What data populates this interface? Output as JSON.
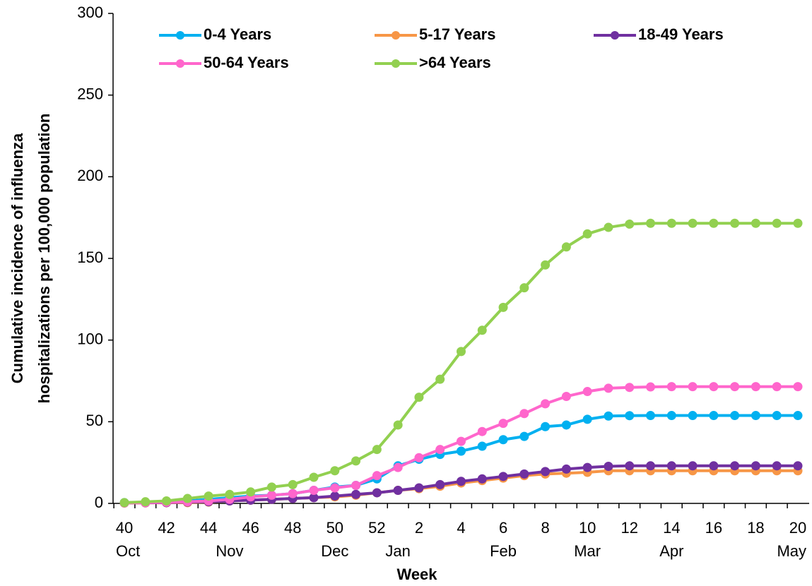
{
  "chart_data": {
    "type": "line",
    "xlabel": "Week",
    "ylabel": [
      "Cumulative incidence of influenza",
      "hospitalizations per 100,000 population"
    ],
    "categories": [
      "40",
      null,
      "42",
      null,
      "44",
      null,
      "46",
      null,
      "48",
      null,
      "50",
      null,
      "52",
      null,
      "2",
      null,
      "4",
      null,
      "6",
      null,
      "8",
      null,
      "10",
      null,
      "12",
      null,
      "14",
      null,
      "16",
      null,
      "18",
      null,
      "20"
    ],
    "category_groups": [
      "Oct",
      null,
      null,
      null,
      null,
      "Nov",
      null,
      null,
      null,
      null,
      "Dec",
      null,
      null,
      "Jan",
      null,
      null,
      null,
      null,
      "Feb",
      null,
      null,
      null,
      "Mar",
      null,
      null,
      null,
      "Apr",
      null,
      null,
      null,
      null,
      null,
      "May"
    ],
    "series": [
      {
        "name": "0-4 Years",
        "color": "#00b0f0",
        "values": [
          0.5,
          0.7,
          1,
          1.5,
          2.5,
          3.5,
          4.5,
          5,
          6,
          8,
          10,
          11,
          15,
          23,
          27,
          30,
          32,
          35,
          39,
          41,
          47,
          48,
          51.5,
          53.5,
          53.7,
          53.8,
          53.8,
          53.8,
          53.8,
          53.8,
          53.8,
          53.8,
          53.8
        ]
      },
      {
        "name": "5-17 Years",
        "color": "#f79646",
        "values": [
          0.2,
          0.3,
          0.4,
          0.5,
          0.8,
          1.5,
          2,
          2.5,
          3,
          3.5,
          4,
          5,
          6.5,
          8,
          9,
          10.5,
          12.5,
          14,
          15.5,
          17,
          18,
          18.5,
          19,
          20,
          20,
          20,
          20,
          20,
          20,
          20,
          20,
          20,
          20
        ]
      },
      {
        "name": "18-49 Years",
        "color": "#7030a0",
        "values": [
          0.3,
          0.4,
          0.5,
          0.8,
          1,
          1.5,
          2,
          2.5,
          3,
          3.5,
          4.5,
          5.5,
          6.5,
          8,
          9.5,
          11.5,
          13.5,
          15,
          16.5,
          18,
          19.5,
          21,
          22,
          22.7,
          23,
          23,
          23,
          23,
          23,
          23,
          23,
          23,
          23
        ]
      },
      {
        "name": "50-64 Years",
        "color": "#ff66cc",
        "values": [
          0.3,
          0.5,
          0.7,
          1,
          1.5,
          2.5,
          4,
          5,
          6,
          8,
          9.5,
          11,
          17,
          22,
          28,
          33,
          38,
          44,
          49,
          55,
          61,
          65.5,
          68.5,
          70.5,
          71,
          71.3,
          71.5,
          71.5,
          71.5,
          71.5,
          71.5,
          71.5,
          71.5
        ]
      },
      {
        "name": ">64 Years",
        "color": "#92d050",
        "values": [
          0.5,
          1,
          1.5,
          3,
          4.5,
          5.5,
          7,
          10,
          11.5,
          16,
          20,
          26,
          33,
          48,
          65,
          76,
          93,
          106,
          120,
          132,
          146,
          157,
          165,
          169,
          171,
          171.5,
          171.5,
          171.5,
          171.5,
          171.5,
          171.5,
          171.5,
          171.5
        ]
      }
    ],
    "ylim": [
      0,
      300
    ],
    "yticks": [
      0,
      50,
      100,
      150,
      200,
      250,
      300
    ],
    "grid": false,
    "legend": "top"
  }
}
